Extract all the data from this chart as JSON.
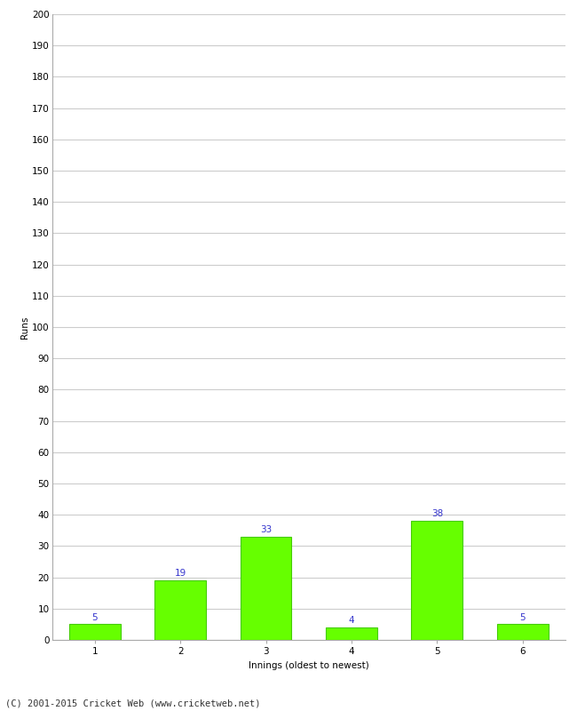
{
  "innings": [
    1,
    2,
    3,
    4,
    5,
    6
  ],
  "runs": [
    5,
    19,
    33,
    4,
    38,
    5
  ],
  "bar_color": "#66ff00",
  "bar_edge_color": "#44cc00",
  "label_color": "#3333cc",
  "xlabel": "Innings (oldest to newest)",
  "ylabel": "Runs",
  "ylim": [
    0,
    200
  ],
  "ytick_step": 10,
  "footer": "(C) 2001-2015 Cricket Web (www.cricketweb.net)",
  "background_color": "#ffffff",
  "grid_color": "#cccccc",
  "label_fontsize": 7.5,
  "axis_fontsize": 7.5,
  "ylabel_fontsize": 7.5,
  "xlabel_fontsize": 7.5,
  "footer_fontsize": 7.5
}
